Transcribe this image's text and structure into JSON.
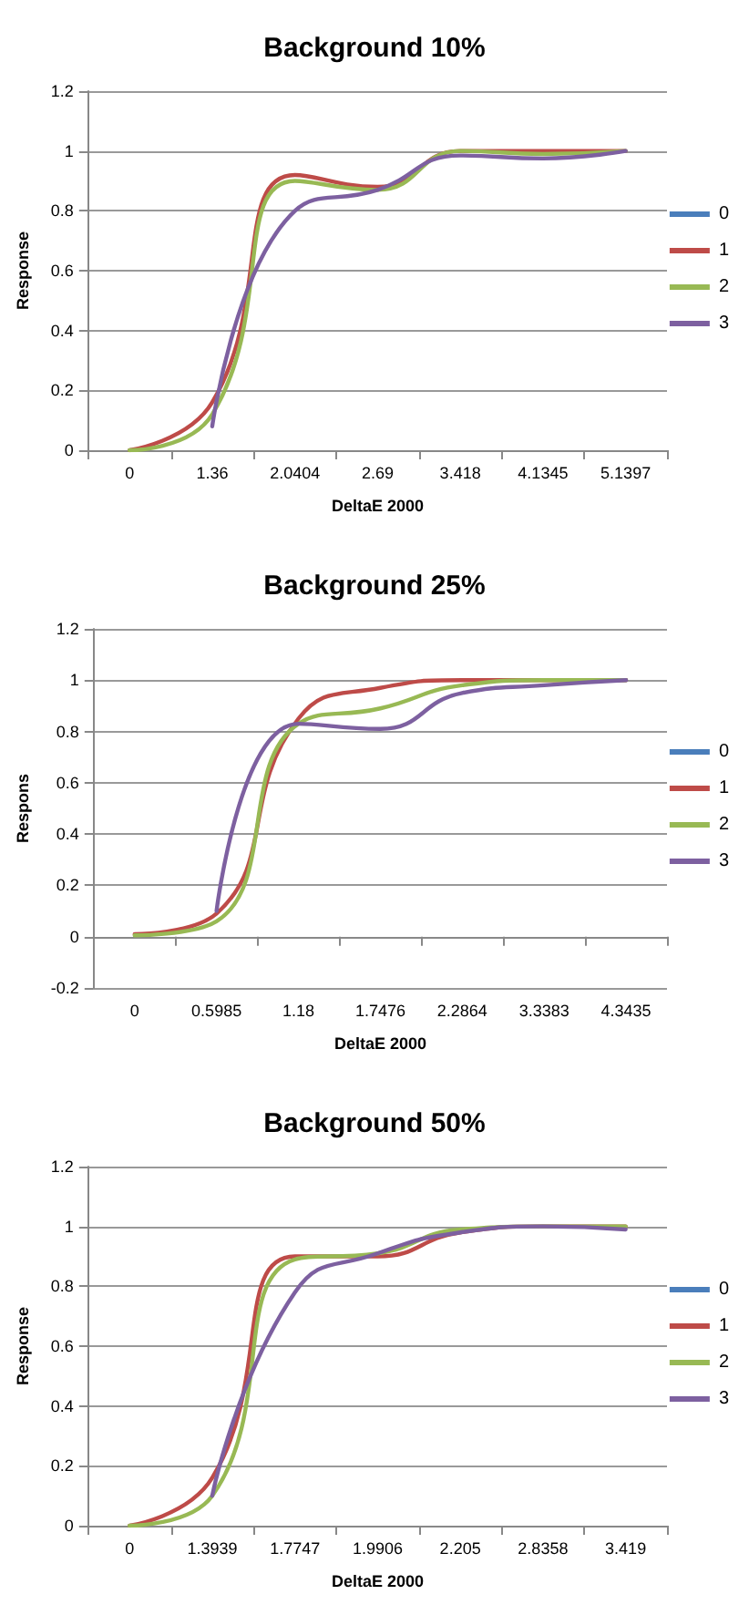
{
  "chart_data": [
    {
      "type": "line",
      "title": "Background 10%",
      "xlabel": "DeltaE 2000",
      "ylabel": "Response",
      "categories": [
        "0",
        "1.36",
        "2.0404",
        "2.69",
        "3.418",
        "4.1345",
        "5.1397"
      ],
      "ylim": [
        0,
        1.2
      ],
      "yticks": [
        0,
        0.2,
        0.4,
        0.6,
        0.8,
        1,
        1.2
      ],
      "grid": "y",
      "legend": "right",
      "marker": "none",
      "line_style": "solid",
      "series": [
        {
          "name": "0",
          "color": "#4a7ebb",
          "values": [
            null,
            null,
            null,
            null,
            null,
            null,
            null
          ]
        },
        {
          "name": "1",
          "color": "#be4b48",
          "values": [
            0,
            0.16,
            0.92,
            0.88,
            1.0,
            1.0,
            1.0
          ]
        },
        {
          "name": "2",
          "color": "#98b954",
          "values": [
            0,
            0.12,
            0.9,
            0.87,
            1.0,
            0.99,
            1.0
          ]
        },
        {
          "name": "3",
          "color": "#7d60a0",
          "values": [
            null,
            0.08,
            0.8,
            0.87,
            0.985,
            0.975,
            1.0
          ]
        }
      ]
    },
    {
      "type": "line",
      "title": "Background 25%",
      "xlabel": "DeltaE 2000",
      "ylabel": "Respons",
      "categories": [
        "0",
        "0.5985",
        "1.18",
        "1.7476",
        "2.2864",
        "3.3383",
        "4.3435"
      ],
      "ylim": [
        -0.2,
        1.2
      ],
      "yticks": [
        -0.2,
        0,
        0.2,
        0.4,
        0.6,
        0.8,
        1,
        1.2
      ],
      "grid": "y",
      "legend": "right",
      "marker": "none",
      "line_style": "solid",
      "series": [
        {
          "name": "0",
          "color": "#4a7ebb",
          "values": [
            null,
            null,
            null,
            null,
            null,
            null,
            null
          ]
        },
        {
          "name": "1",
          "color": "#be4b48",
          "values": [
            0.01,
            0.09,
            0.85,
            0.97,
            1.0,
            1.0,
            1.0
          ]
        },
        {
          "name": "2",
          "color": "#98b954",
          "values": [
            0.005,
            0.06,
            0.83,
            0.89,
            0.98,
            1.0,
            1.0
          ]
        },
        {
          "name": "3",
          "color": "#7d60a0",
          "values": [
            null,
            0.1,
            0.83,
            0.81,
            0.95,
            0.98,
            1.0
          ]
        }
      ]
    },
    {
      "type": "line",
      "title": "Background 50%",
      "xlabel": "DeltaE 2000",
      "ylabel": "Response",
      "categories": [
        "0",
        "1.3939",
        "1.7747",
        "1.9906",
        "2.205",
        "2.8358",
        "3.419"
      ],
      "ylim": [
        0,
        1.2
      ],
      "yticks": [
        0,
        0.2,
        0.4,
        0.6,
        0.8,
        1,
        1.2
      ],
      "grid": "y",
      "legend": "right",
      "marker": "none",
      "line_style": "solid",
      "series": [
        {
          "name": "0",
          "color": "#4a7ebb",
          "values": [
            null,
            null,
            null,
            null,
            null,
            null,
            null
          ]
        },
        {
          "name": "1",
          "color": "#be4b48",
          "values": [
            0,
            0.16,
            0.9,
            0.9,
            0.98,
            1.0,
            1.0
          ]
        },
        {
          "name": "2",
          "color": "#98b954",
          "values": [
            0,
            0.1,
            0.89,
            0.91,
            0.99,
            1.0,
            1.0
          ]
        },
        {
          "name": "3",
          "color": "#7d60a0",
          "values": [
            null,
            0.1,
            0.78,
            0.91,
            0.98,
            1.0,
            0.99
          ]
        }
      ]
    }
  ]
}
